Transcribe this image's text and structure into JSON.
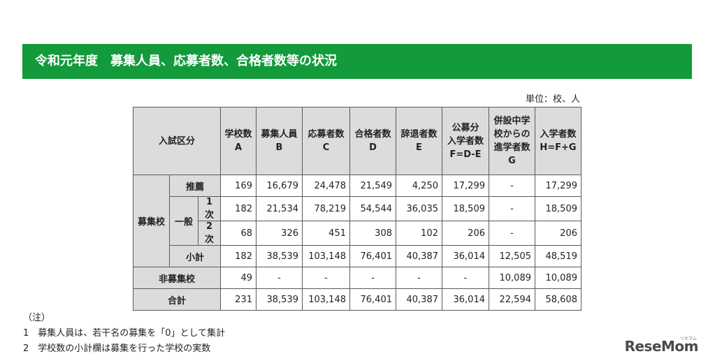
{
  "title": "令和元年度　募集人員、応募者数、合格者数等の状況",
  "unit": "単位：校、人",
  "header": {
    "category": "入試区分",
    "col_a": [
      "学校数",
      "A"
    ],
    "col_b": [
      "募集人員",
      "B"
    ],
    "col_c": [
      "応募者数",
      "C"
    ],
    "col_d": [
      "合格者数",
      "D"
    ],
    "col_e": [
      "辞退者数",
      "E"
    ],
    "col_f": [
      "公募分",
      "入学者数",
      "F=D-E"
    ],
    "col_g": [
      "併設中学",
      "校からの",
      "進学者数",
      "G"
    ],
    "col_h": [
      "入学者数",
      "H=F+G"
    ]
  },
  "labels": {
    "boshuko": "募集校",
    "suisen": "推薦",
    "ippan": "一般",
    "ichiji": "1次",
    "niji": "2次",
    "shokei": "小計",
    "hiboshuko": "非募集校",
    "gokei": "合計"
  },
  "rows": {
    "suisen": [
      "169",
      "16,679",
      "24,478",
      "21,549",
      "4,250",
      "17,299",
      "-",
      "17,299"
    ],
    "ichiji": [
      "182",
      "21,534",
      "78,219",
      "54,544",
      "36,035",
      "18,509",
      "-",
      "18,509"
    ],
    "niji": [
      "68",
      "326",
      "451",
      "308",
      "102",
      "206",
      "-",
      "206"
    ],
    "shokei": [
      "182",
      "38,539",
      "103,148",
      "76,401",
      "40,387",
      "36,014",
      "12,505",
      "48,519"
    ],
    "hiboshuko": [
      "49",
      "-",
      "-",
      "-",
      "-",
      "-",
      "10,089",
      "10,089"
    ],
    "gokei": [
      "231",
      "38,539",
      "103,148",
      "76,401",
      "40,387",
      "36,014",
      "22,594",
      "58,608"
    ]
  },
  "notes": {
    "heading": "（注）",
    "note1": "1　募集人員は、若干名の募集を「0」として集計",
    "note2": "2　学校数の小計欄は募集を行った学校の実数"
  },
  "logo": {
    "text": "ReseMom",
    "sub": "リセマム"
  },
  "colors": {
    "banner": "#129a3b",
    "header_bg": "#dcdcdc"
  }
}
